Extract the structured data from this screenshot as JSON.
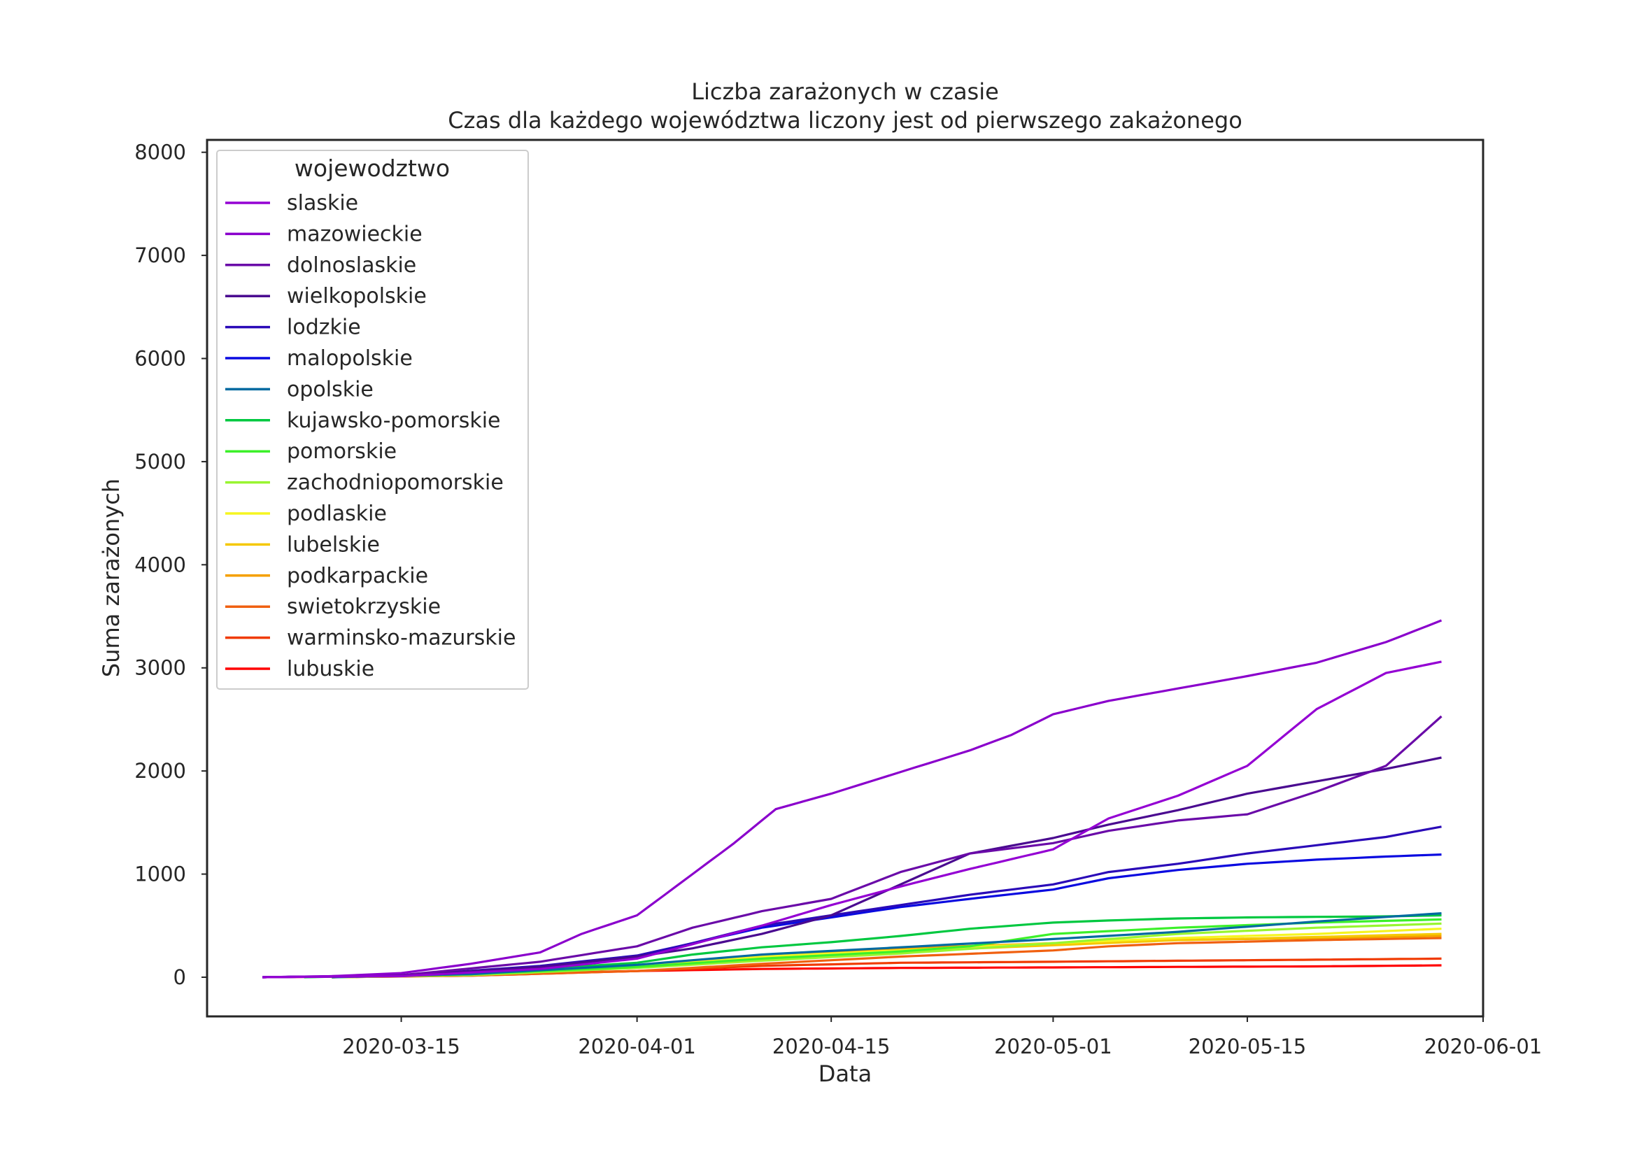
{
  "chart_data": {
    "type": "line",
    "title": "Liczba zarażonych w czasie",
    "subtitle": "Czas dla każdego województwa liczony jest od pierwszego zakażonego",
    "xlabel": "Data",
    "ylabel": "Suma zarażonych",
    "x_axis_type": "date",
    "xlim": [
      "2020-03-01",
      "2020-06-01"
    ],
    "ylim": [
      -380,
      8120
    ],
    "x_ticks": [
      "2020-03-15",
      "2020-04-01",
      "2020-04-15",
      "2020-05-01",
      "2020-05-15",
      "2020-06-01"
    ],
    "y_ticks": [
      0,
      1000,
      2000,
      3000,
      4000,
      5000,
      6000,
      7000,
      8000
    ],
    "grid": false,
    "legend": {
      "title": "wojewodztwo",
      "placement": "top-left"
    },
    "series": [
      {
        "name": "slaskie",
        "color": "#9400d3",
        "points": [
          [
            "2020-03-05",
            0
          ],
          [
            "2020-03-15",
            10
          ],
          [
            "2020-03-25",
            80
          ],
          [
            "2020-04-01",
            180
          ],
          [
            "2020-04-05",
            320
          ],
          [
            "2020-04-10",
            500
          ],
          [
            "2020-04-15",
            700
          ],
          [
            "2020-04-20",
            880
          ],
          [
            "2020-04-25",
            1050
          ],
          [
            "2020-05-01",
            1240
          ],
          [
            "2020-05-05",
            1540
          ],
          [
            "2020-05-10",
            1760
          ],
          [
            "2020-05-15",
            2050
          ],
          [
            "2020-05-20",
            2600
          ],
          [
            "2020-05-25",
            2950
          ],
          [
            "2020-05-29",
            3060
          ]
        ]
      },
      {
        "name": "mazowieckie",
        "color": "#8a00cc",
        "points": [
          [
            "2020-03-05",
            0
          ],
          [
            "2020-03-10",
            10
          ],
          [
            "2020-03-15",
            40
          ],
          [
            "2020-03-20",
            130
          ],
          [
            "2020-03-25",
            240
          ],
          [
            "2020-03-28",
            420
          ],
          [
            "2020-04-01",
            600
          ],
          [
            "2020-04-05",
            1000
          ],
          [
            "2020-04-08",
            1300
          ],
          [
            "2020-04-11",
            1630
          ],
          [
            "2020-04-15",
            1780
          ],
          [
            "2020-04-20",
            1990
          ],
          [
            "2020-04-25",
            2200
          ],
          [
            "2020-04-28",
            2350
          ],
          [
            "2020-05-01",
            2550
          ],
          [
            "2020-05-05",
            2680
          ],
          [
            "2020-05-10",
            2800
          ],
          [
            "2020-05-15",
            2920
          ],
          [
            "2020-05-20",
            3050
          ],
          [
            "2020-05-25",
            3250
          ],
          [
            "2020-05-29",
            3460
          ]
        ]
      },
      {
        "name": "dolnoslaskie",
        "color": "#6a0aa8",
        "points": [
          [
            "2020-03-05",
            0
          ],
          [
            "2020-03-15",
            20
          ],
          [
            "2020-03-25",
            150
          ],
          [
            "2020-04-01",
            300
          ],
          [
            "2020-04-05",
            480
          ],
          [
            "2020-04-10",
            640
          ],
          [
            "2020-04-15",
            760
          ],
          [
            "2020-04-20",
            1020
          ],
          [
            "2020-04-25",
            1200
          ],
          [
            "2020-05-01",
            1300
          ],
          [
            "2020-05-05",
            1420
          ],
          [
            "2020-05-10",
            1520
          ],
          [
            "2020-05-15",
            1580
          ],
          [
            "2020-05-20",
            1800
          ],
          [
            "2020-05-25",
            2050
          ],
          [
            "2020-05-29",
            2530
          ]
        ]
      },
      {
        "name": "wielkopolskie",
        "color": "#4a0a90",
        "points": [
          [
            "2020-03-05",
            0
          ],
          [
            "2020-03-15",
            15
          ],
          [
            "2020-03-25",
            100
          ],
          [
            "2020-04-01",
            200
          ],
          [
            "2020-04-05",
            280
          ],
          [
            "2020-04-10",
            420
          ],
          [
            "2020-04-15",
            600
          ],
          [
            "2020-04-20",
            900
          ],
          [
            "2020-04-25",
            1200
          ],
          [
            "2020-05-01",
            1350
          ],
          [
            "2020-05-05",
            1480
          ],
          [
            "2020-05-10",
            1620
          ],
          [
            "2020-05-15",
            1780
          ],
          [
            "2020-05-20",
            1900
          ],
          [
            "2020-05-25",
            2020
          ],
          [
            "2020-05-29",
            2130
          ]
        ]
      },
      {
        "name": "lodzkie",
        "color": "#2a0ab8",
        "points": [
          [
            "2020-03-05",
            0
          ],
          [
            "2020-03-15",
            15
          ],
          [
            "2020-03-25",
            110
          ],
          [
            "2020-04-01",
            210
          ],
          [
            "2020-04-05",
            330
          ],
          [
            "2020-04-10",
            500
          ],
          [
            "2020-04-15",
            600
          ],
          [
            "2020-04-20",
            700
          ],
          [
            "2020-04-25",
            800
          ],
          [
            "2020-05-01",
            900
          ],
          [
            "2020-05-05",
            1020
          ],
          [
            "2020-05-10",
            1100
          ],
          [
            "2020-05-15",
            1200
          ],
          [
            "2020-05-20",
            1280
          ],
          [
            "2020-05-25",
            1360
          ],
          [
            "2020-05-29",
            1460
          ]
        ]
      },
      {
        "name": "malopolskie",
        "color": "#0a0ae0",
        "points": [
          [
            "2020-03-05",
            0
          ],
          [
            "2020-03-15",
            15
          ],
          [
            "2020-03-25",
            100
          ],
          [
            "2020-04-01",
            200
          ],
          [
            "2020-04-05",
            330
          ],
          [
            "2020-04-10",
            480
          ],
          [
            "2020-04-15",
            580
          ],
          [
            "2020-04-20",
            680
          ],
          [
            "2020-04-25",
            760
          ],
          [
            "2020-05-01",
            850
          ],
          [
            "2020-05-05",
            960
          ],
          [
            "2020-05-10",
            1040
          ],
          [
            "2020-05-15",
            1100
          ],
          [
            "2020-05-20",
            1140
          ],
          [
            "2020-05-25",
            1170
          ],
          [
            "2020-05-29",
            1190
          ]
        ]
      },
      {
        "name": "opolskie",
        "color": "#006aa0",
        "points": [
          [
            "2020-03-10",
            0
          ],
          [
            "2020-03-20",
            30
          ],
          [
            "2020-04-01",
            120
          ],
          [
            "2020-04-10",
            220
          ],
          [
            "2020-04-20",
            290
          ],
          [
            "2020-05-01",
            370
          ],
          [
            "2020-05-10",
            440
          ],
          [
            "2020-05-20",
            540
          ],
          [
            "2020-05-29",
            620
          ]
        ]
      },
      {
        "name": "kujawsko-pomorskie",
        "color": "#00c840",
        "points": [
          [
            "2020-03-08",
            0
          ],
          [
            "2020-03-15",
            20
          ],
          [
            "2020-03-25",
            80
          ],
          [
            "2020-04-01",
            140
          ],
          [
            "2020-04-05",
            220
          ],
          [
            "2020-04-10",
            290
          ],
          [
            "2020-04-15",
            340
          ],
          [
            "2020-04-20",
            400
          ],
          [
            "2020-04-25",
            470
          ],
          [
            "2020-05-01",
            530
          ],
          [
            "2020-05-05",
            550
          ],
          [
            "2020-05-10",
            570
          ],
          [
            "2020-05-15",
            580
          ],
          [
            "2020-05-20",
            585
          ],
          [
            "2020-05-25",
            590
          ],
          [
            "2020-05-29",
            600
          ]
        ]
      },
      {
        "name": "pomorskie",
        "color": "#3cf02a",
        "points": [
          [
            "2020-03-10",
            0
          ],
          [
            "2020-03-20",
            30
          ],
          [
            "2020-04-01",
            100
          ],
          [
            "2020-04-10",
            180
          ],
          [
            "2020-04-20",
            250
          ],
          [
            "2020-04-25",
            300
          ],
          [
            "2020-05-01",
            420
          ],
          [
            "2020-05-10",
            480
          ],
          [
            "2020-05-20",
            530
          ],
          [
            "2020-05-29",
            560
          ]
        ]
      },
      {
        "name": "zachodniopomorskie",
        "color": "#98f530",
        "points": [
          [
            "2020-03-10",
            0
          ],
          [
            "2020-03-20",
            20
          ],
          [
            "2020-04-01",
            90
          ],
          [
            "2020-04-10",
            160
          ],
          [
            "2020-04-20",
            230
          ],
          [
            "2020-05-01",
            330
          ],
          [
            "2020-05-10",
            420
          ],
          [
            "2020-05-20",
            480
          ],
          [
            "2020-05-29",
            520
          ]
        ]
      },
      {
        "name": "podlaskie",
        "color": "#f5f520",
        "points": [
          [
            "2020-03-10",
            0
          ],
          [
            "2020-03-20",
            25
          ],
          [
            "2020-04-01",
            110
          ],
          [
            "2020-04-10",
            200
          ],
          [
            "2020-04-20",
            260
          ],
          [
            "2020-05-01",
            330
          ],
          [
            "2020-05-10",
            380
          ],
          [
            "2020-05-20",
            420
          ],
          [
            "2020-05-29",
            470
          ]
        ]
      },
      {
        "name": "lubelskie",
        "color": "#f5c800",
        "points": [
          [
            "2020-03-10",
            0
          ],
          [
            "2020-03-20",
            20
          ],
          [
            "2020-04-01",
            100
          ],
          [
            "2020-04-10",
            180
          ],
          [
            "2020-04-20",
            250
          ],
          [
            "2020-05-01",
            310
          ],
          [
            "2020-05-10",
            360
          ],
          [
            "2020-05-20",
            390
          ],
          [
            "2020-05-29",
            420
          ]
        ]
      },
      {
        "name": "podkarpackie",
        "color": "#f5a000",
        "points": [
          [
            "2020-03-10",
            0
          ],
          [
            "2020-03-20",
            20
          ],
          [
            "2020-04-01",
            110
          ],
          [
            "2020-04-10",
            200
          ],
          [
            "2020-04-20",
            280
          ],
          [
            "2020-05-01",
            330
          ],
          [
            "2020-05-10",
            360
          ],
          [
            "2020-05-20",
            380
          ],
          [
            "2020-05-29",
            400
          ]
        ]
      },
      {
        "name": "swietokrzyskie",
        "color": "#f06010",
        "points": [
          [
            "2020-03-10",
            0
          ],
          [
            "2020-03-20",
            15
          ],
          [
            "2020-04-01",
            60
          ],
          [
            "2020-04-10",
            130
          ],
          [
            "2020-04-20",
            200
          ],
          [
            "2020-05-01",
            260
          ],
          [
            "2020-05-05",
            300
          ],
          [
            "2020-05-10",
            330
          ],
          [
            "2020-05-20",
            360
          ],
          [
            "2020-05-29",
            380
          ]
        ]
      },
      {
        "name": "warminsko-mazurskie",
        "color": "#f03a00",
        "points": [
          [
            "2020-03-10",
            0
          ],
          [
            "2020-03-20",
            15
          ],
          [
            "2020-04-01",
            60
          ],
          [
            "2020-04-10",
            110
          ],
          [
            "2020-04-20",
            140
          ],
          [
            "2020-05-01",
            150
          ],
          [
            "2020-05-10",
            160
          ],
          [
            "2020-05-20",
            170
          ],
          [
            "2020-05-29",
            180
          ]
        ]
      },
      {
        "name": "lubuskie",
        "color": "#ff0000",
        "points": [
          [
            "2020-03-05",
            0
          ],
          [
            "2020-03-15",
            10
          ],
          [
            "2020-03-25",
            40
          ],
          [
            "2020-04-01",
            60
          ],
          [
            "2020-04-10",
            80
          ],
          [
            "2020-04-20",
            90
          ],
          [
            "2020-05-01",
            95
          ],
          [
            "2020-05-10",
            100
          ],
          [
            "2020-05-20",
            105
          ],
          [
            "2020-05-29",
            115
          ]
        ]
      }
    ]
  }
}
